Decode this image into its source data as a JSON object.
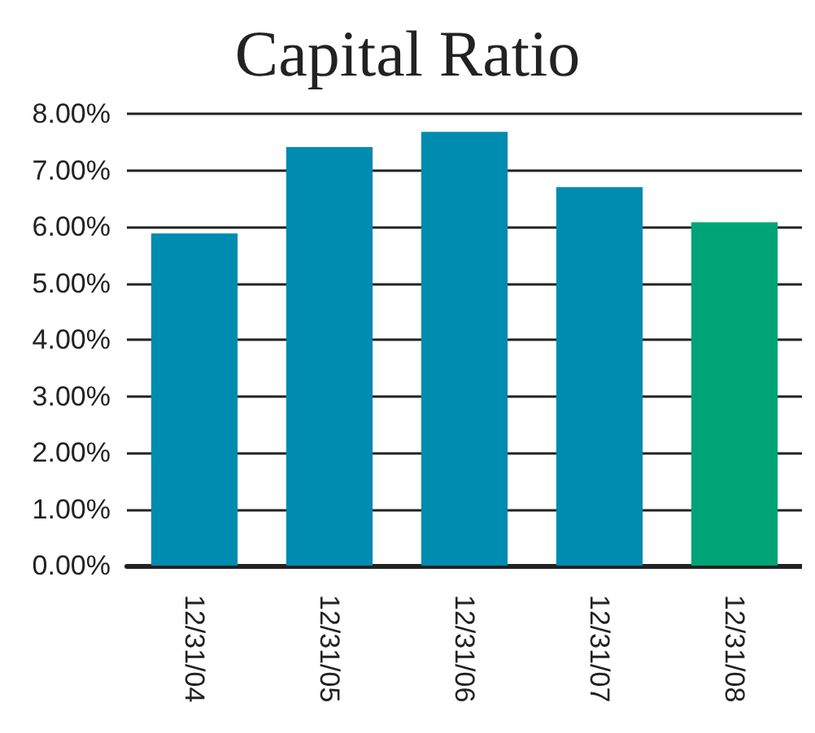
{
  "chart_data": {
    "type": "bar",
    "title": "Capital Ratio",
    "categories": [
      "12/31/04",
      "12/31/05",
      "12/31/06",
      "12/31/07",
      "12/31/08"
    ],
    "values": [
      5.88,
      7.41,
      7.68,
      6.7,
      6.08
    ],
    "colors": [
      "#008bb0",
      "#008bb0",
      "#008bb0",
      "#008bb0",
      "#00a477"
    ],
    "ylim": [
      0,
      8
    ],
    "yticks": [
      {
        "value": 0,
        "label": "0.00%"
      },
      {
        "value": 1,
        "label": "1.00%"
      },
      {
        "value": 2,
        "label": "2.00%"
      },
      {
        "value": 3,
        "label": "3.00%"
      },
      {
        "value": 4,
        "label": "4.00%"
      },
      {
        "value": 5,
        "label": "5.00%"
      },
      {
        "value": 6,
        "label": "6.00%"
      },
      {
        "value": 7,
        "label": "7.00%"
      },
      {
        "value": 8,
        "label": "8.00%"
      }
    ],
    "grid": true
  }
}
